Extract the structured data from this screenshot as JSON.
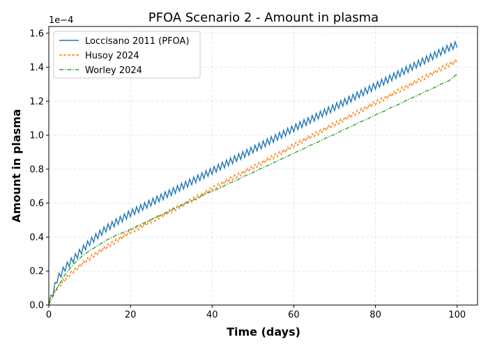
{
  "chart_data": {
    "type": "line",
    "title": "PFOA Scenario 2 - Amount in plasma",
    "xlabel": "Time (days)",
    "ylabel": "Amount in plasma",
    "y_offset_text": "1e−4",
    "xlim": [
      0,
      105
    ],
    "ylim": [
      0,
      1.64
    ],
    "xticks": [
      0,
      20,
      40,
      60,
      80,
      100
    ],
    "xtick_labels": [
      "0",
      "20",
      "40",
      "60",
      "80",
      "100"
    ],
    "yticks": [
      0,
      0.2,
      0.4,
      0.6,
      0.8,
      1.0,
      1.2,
      1.4,
      1.6
    ],
    "ytick_labels": [
      "0.0",
      "0.2",
      "0.4",
      "0.6",
      "0.8",
      "1.0",
      "1.2",
      "1.4",
      "1.6"
    ],
    "grid": true,
    "legend_position": "top-left",
    "x": [
      0,
      2,
      4,
      6,
      8,
      10,
      12,
      14,
      16,
      18,
      20,
      22,
      24,
      26,
      28,
      30,
      32,
      34,
      36,
      38,
      40,
      42,
      44,
      46,
      48,
      50,
      52,
      54,
      56,
      58,
      60,
      62,
      64,
      66,
      68,
      70,
      72,
      74,
      76,
      78,
      80,
      82,
      84,
      86,
      88,
      90,
      92,
      94,
      96,
      98,
      100
    ],
    "series": [
      {
        "name": "Loccisano 2011 (PFOA)",
        "color": "#1f77b4",
        "style": "solid",
        "daily_oscillation": 0.02,
        "values": [
          0.0,
          0.15,
          0.22,
          0.27,
          0.32,
          0.37,
          0.41,
          0.45,
          0.48,
          0.51,
          0.54,
          0.565,
          0.59,
          0.615,
          0.64,
          0.665,
          0.69,
          0.715,
          0.74,
          0.765,
          0.79,
          0.815,
          0.84,
          0.865,
          0.89,
          0.915,
          0.94,
          0.965,
          0.99,
          1.015,
          1.04,
          1.065,
          1.09,
          1.115,
          1.14,
          1.165,
          1.19,
          1.215,
          1.24,
          1.265,
          1.29,
          1.315,
          1.34,
          1.365,
          1.39,
          1.415,
          1.44,
          1.465,
          1.49,
          1.515,
          1.535
        ]
      },
      {
        "name": "Husoy 2024",
        "color": "#ff7f0e",
        "style": "dashed",
        "daily_oscillation": 0.012,
        "values": [
          0.02,
          0.1,
          0.15,
          0.2,
          0.24,
          0.275,
          0.31,
          0.34,
          0.37,
          0.4,
          0.43,
          0.455,
          0.48,
          0.505,
          0.53,
          0.555,
          0.58,
          0.605,
          0.63,
          0.655,
          0.685,
          0.71,
          0.735,
          0.76,
          0.785,
          0.81,
          0.835,
          0.86,
          0.885,
          0.91,
          0.94,
          0.965,
          0.99,
          1.015,
          1.04,
          1.065,
          1.09,
          1.115,
          1.14,
          1.165,
          1.19,
          1.215,
          1.24,
          1.265,
          1.29,
          1.315,
          1.34,
          1.365,
          1.39,
          1.415,
          1.44
        ]
      },
      {
        "name": "Worley 2024",
        "color": "#2ca02c",
        "style": "dashdot",
        "daily_oscillation": 0,
        "values": [
          0.0,
          0.1,
          0.18,
          0.24,
          0.285,
          0.32,
          0.35,
          0.38,
          0.405,
          0.425,
          0.445,
          0.47,
          0.49,
          0.515,
          0.535,
          0.56,
          0.58,
          0.605,
          0.625,
          0.65,
          0.67,
          0.69,
          0.715,
          0.735,
          0.76,
          0.78,
          0.805,
          0.825,
          0.85,
          0.87,
          0.895,
          0.915,
          0.94,
          0.96,
          0.985,
          1.005,
          1.03,
          1.05,
          1.075,
          1.095,
          1.12,
          1.14,
          1.165,
          1.185,
          1.21,
          1.23,
          1.255,
          1.275,
          1.3,
          1.32,
          1.36
        ]
      }
    ]
  }
}
